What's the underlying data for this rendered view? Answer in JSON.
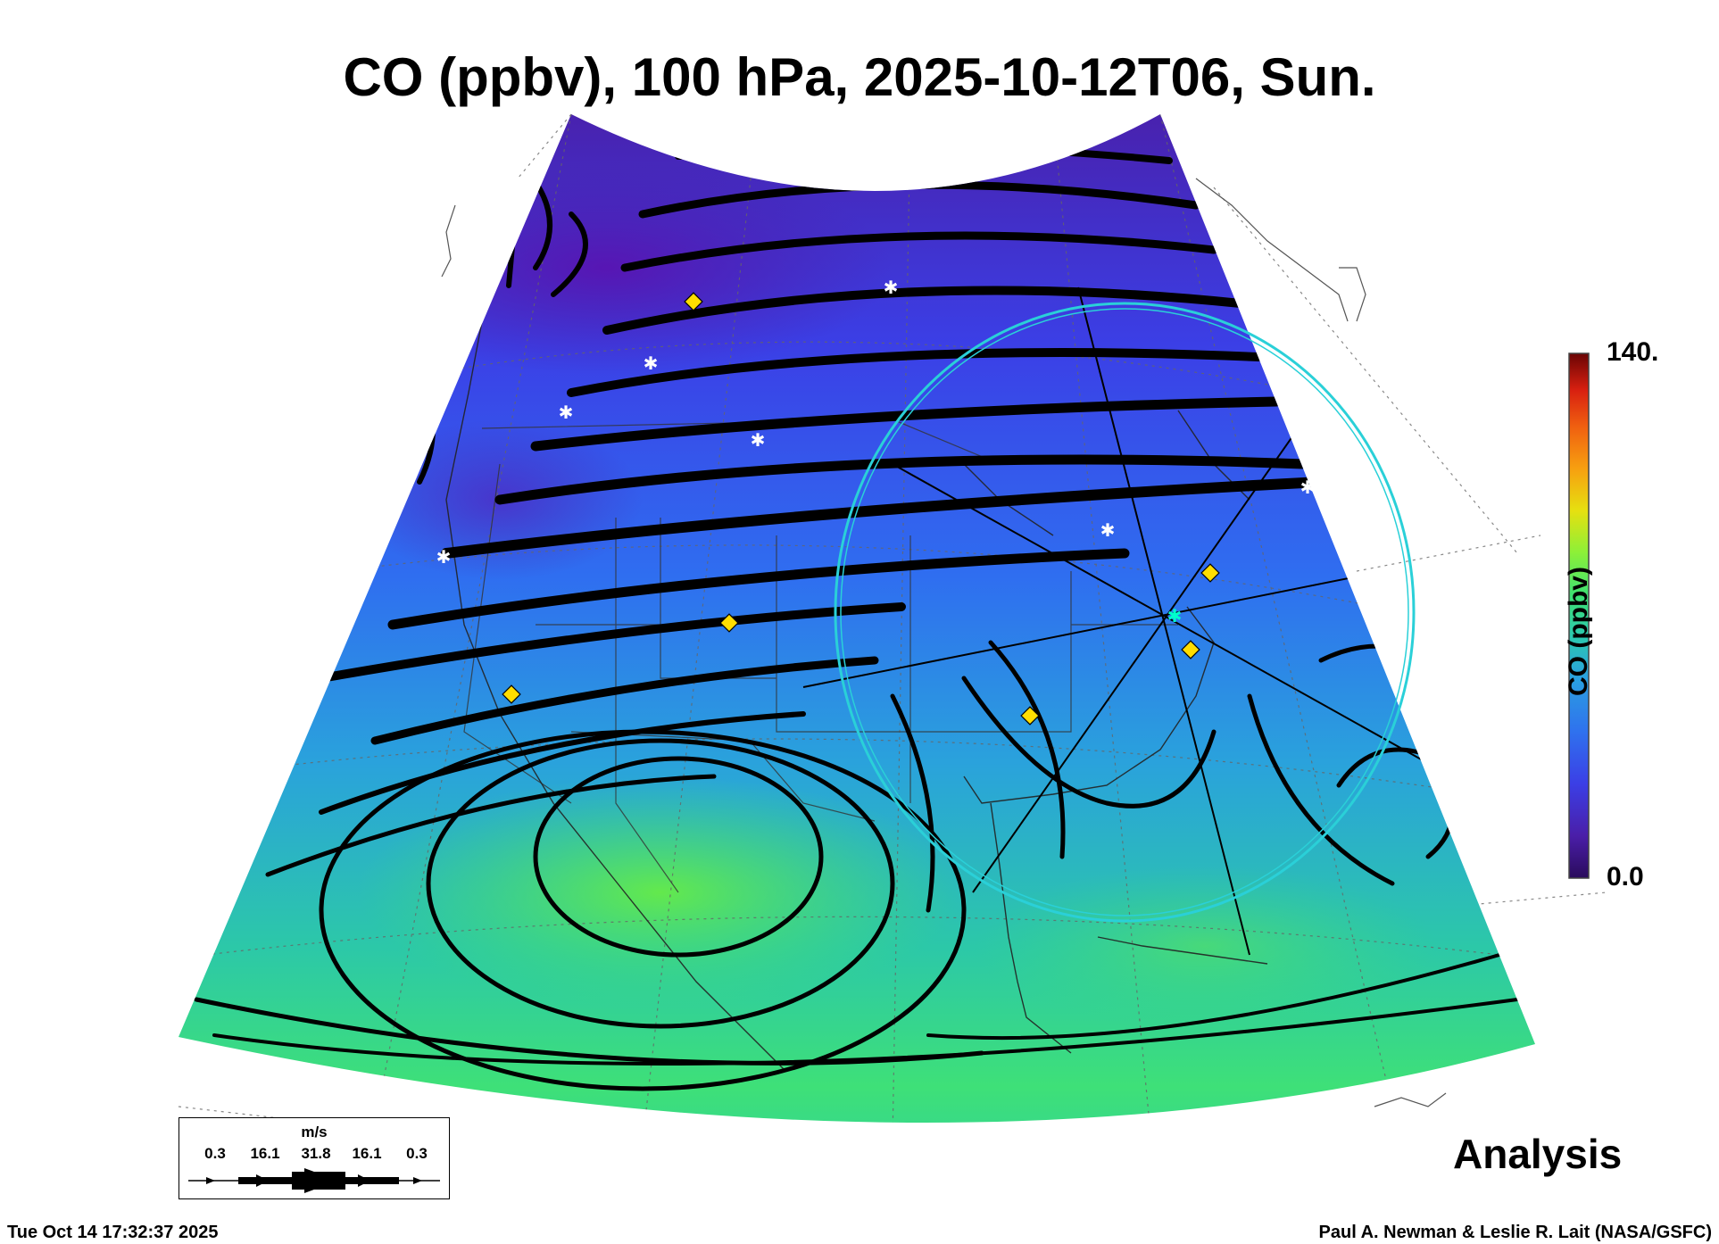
{
  "title": "CO (ppbv), 100 hPa, 2025-10-12T06, Sun.",
  "colorbar": {
    "max_label": "140.",
    "min_label": "0.0",
    "label": "CO (ppbv)",
    "colors": [
      "#2a0b5c",
      "#4a1ea8",
      "#3b3fe6",
      "#2f72ee",
      "#2aa0e0",
      "#2cc8b0",
      "#3ee070",
      "#8cf038",
      "#e6e010",
      "#f7a010",
      "#f06010",
      "#d82010",
      "#a00808",
      "#6a0404"
    ]
  },
  "analysis_label": "Analysis",
  "wind_legend": {
    "unit": "m/s",
    "ticks": [
      "0.3",
      "16.1",
      "31.8",
      "16.1",
      "0.3"
    ]
  },
  "footer": {
    "timestamp": "Tue Oct 14 17:32:37 2025",
    "credit": "Paul A. Newman & Leslie R. Lait (NASA/GSFC)"
  },
  "markers": {
    "diamond_color": "#ffdd00",
    "star_color": "#ffffff",
    "center_color": "#00ffcc",
    "ring_color": "#2ad0d8"
  }
}
